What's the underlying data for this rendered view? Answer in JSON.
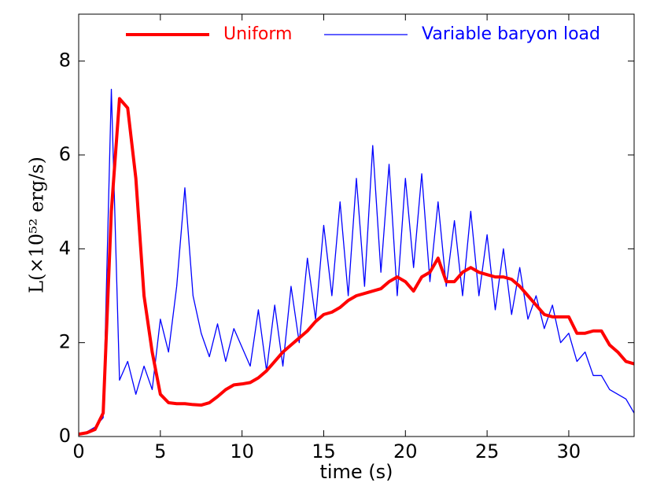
{
  "chart_data": {
    "type": "line",
    "xlabel": "time (s)",
    "ylabel": "L(×10⁵² erg/s)",
    "x": [
      0,
      0.5,
      1,
      1.5,
      2,
      2.5,
      3,
      3.5,
      4,
      4.5,
      5,
      5.5,
      6,
      6.5,
      7,
      7.5,
      8,
      8.5,
      9,
      9.5,
      10,
      10.5,
      11,
      11.5,
      12,
      12.5,
      13,
      13.5,
      14,
      14.5,
      15,
      15.5,
      16,
      16.5,
      17,
      17.5,
      18,
      18.5,
      19,
      19.5,
      20,
      20.5,
      21,
      21.5,
      22,
      22.5,
      23,
      23.5,
      24,
      24.5,
      25,
      25.5,
      26,
      26.5,
      27,
      27.5,
      28,
      28.5,
      29,
      29.5,
      30,
      30.5,
      31,
      31.5,
      32,
      32.5,
      33,
      33.5,
      34
    ],
    "series": [
      {
        "name": "Uniform",
        "color": "#ff0000",
        "width": 4,
        "values": [
          0.05,
          0.08,
          0.15,
          0.5,
          4.8,
          7.2,
          7.0,
          5.5,
          3.0,
          1.8,
          0.9,
          0.72,
          0.7,
          0.7,
          0.68,
          0.67,
          0.72,
          0.85,
          1.0,
          1.1,
          1.12,
          1.15,
          1.25,
          1.4,
          1.6,
          1.8,
          1.95,
          2.1,
          2.25,
          2.45,
          2.6,
          2.65,
          2.75,
          2.9,
          3.0,
          3.05,
          3.1,
          3.15,
          3.3,
          3.4,
          3.3,
          3.1,
          3.4,
          3.5,
          3.8,
          3.3,
          3.3,
          3.5,
          3.6,
          3.5,
          3.45,
          3.4,
          3.4,
          3.35,
          3.2,
          3.0,
          2.8,
          2.6,
          2.55,
          2.55,
          2.55,
          2.2,
          2.2,
          2.25,
          2.25,
          1.95,
          1.8,
          1.6,
          1.55
        ]
      },
      {
        "name": "Variable baryon load",
        "color": "#0000ff",
        "width": 1.3,
        "values": [
          0.05,
          0.1,
          0.2,
          0.4,
          7.4,
          1.2,
          1.6,
          0.9,
          1.5,
          1.0,
          2.5,
          1.8,
          3.2,
          5.3,
          3.0,
          2.2,
          1.7,
          2.4,
          1.6,
          2.3,
          1.9,
          1.5,
          2.7,
          1.4,
          2.8,
          1.5,
          3.2,
          2.0,
          3.8,
          2.5,
          4.5,
          3.0,
          5.0,
          3.0,
          5.5,
          3.2,
          6.2,
          3.5,
          5.8,
          3.0,
          5.5,
          3.6,
          5.6,
          3.3,
          5.0,
          3.2,
          4.6,
          3.0,
          4.8,
          3.0,
          4.3,
          2.7,
          4.0,
          2.6,
          3.6,
          2.5,
          3.0,
          2.3,
          2.8,
          2.0,
          2.2,
          1.6,
          1.8,
          1.3,
          1.3,
          1.0,
          0.9,
          0.8,
          0.5
        ]
      }
    ],
    "xlim": [
      0,
      34
    ],
    "ylim": [
      0,
      9
    ],
    "xticks": [
      0,
      5,
      10,
      15,
      20,
      25,
      30
    ],
    "yticks": [
      0,
      2,
      4,
      6,
      8
    ],
    "grid": false,
    "legend": "upper center"
  }
}
